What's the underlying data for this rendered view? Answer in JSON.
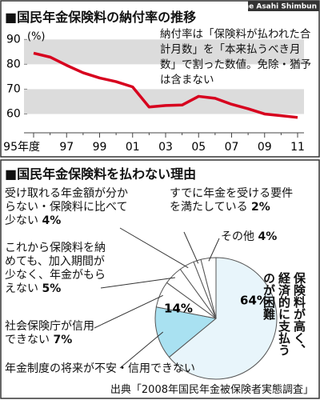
{
  "header": {
    "credit": "The Asahi Shimbun"
  },
  "chart_data": [
    {
      "type": "line",
      "title": "国民年金保険料の納付率の推移",
      "y_unit": "(%)",
      "annotation": "納付率は「保険料が払われた合計月数」を「本来払うべき月数」で割った数値。免除・猶予は含まない",
      "categories": [
        "95年度",
        null,
        "97",
        null,
        "99",
        null,
        "01",
        null,
        "03",
        null,
        "05",
        null,
        "07",
        null,
        "09",
        null,
        "11"
      ],
      "values": [
        84.5,
        82.9,
        79.6,
        76.6,
        74.5,
        73.0,
        70.9,
        62.8,
        63.4,
        63.6,
        67.1,
        66.3,
        63.9,
        62.1,
        60.0,
        59.3,
        58.6
      ],
      "color": "#d7001e",
      "ylim": [
        55,
        93
      ],
      "yticks": [
        60,
        70,
        80,
        90
      ],
      "grid": "bands"
    },
    {
      "type": "pie",
      "title": "国民年金保険料を払わない理由",
      "categories": [
        "保険料が高く、経済的に支払うのが困難",
        "年金制度の将来が不安・信用できない",
        "社会保険庁が信用できない",
        "これから保険料を納めても、加入期間が少なく、年金がもらえない",
        "受け取れる年金額が分からない・保険料に比べて少ない",
        "すでに年金を受ける要件を満たしている",
        "その他"
      ],
      "values": [
        64,
        14,
        7,
        5,
        4,
        2,
        4
      ],
      "value_labels": [
        "64%",
        "14%",
        "7%",
        "5%",
        "4%",
        "2%",
        "4%"
      ],
      "colors": [
        "#e8f5fb",
        "#a9e1f1",
        "#ffffff",
        "#ffffff",
        "#ffffff",
        "#ffffff",
        "#ffffff"
      ],
      "source": "出典「2008年国民年金被保険者実態調査」"
    }
  ]
}
